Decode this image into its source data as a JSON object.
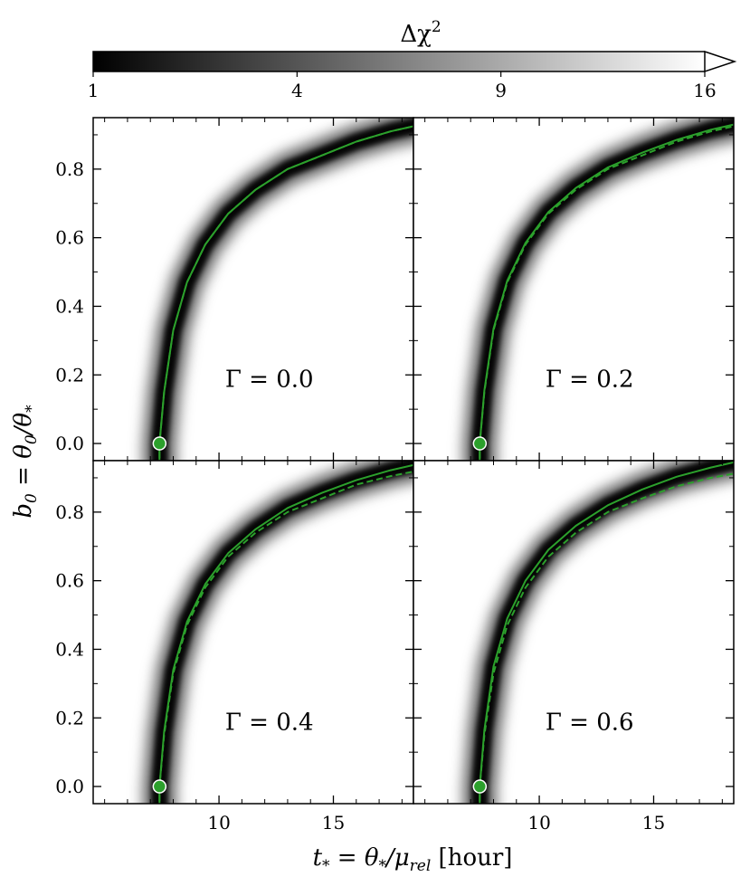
{
  "colorbar": {
    "label": "Δχ²",
    "label_base": "Δχ",
    "label_sup": "2",
    "ticks": [
      "1",
      "4",
      "9",
      "16"
    ],
    "tick_values": [
      1,
      4,
      9,
      16
    ],
    "scale": "sqrt",
    "range": [
      1,
      16
    ],
    "extend": "max",
    "colors": {
      "low": "#000000",
      "high": "#ffffff"
    }
  },
  "axes": {
    "xlabel": "t_* = θ_*/μ_rel [hour]",
    "xlabel_parts": {
      "var": "t",
      "sub1": "*",
      "eq": " = θ",
      "sub2": "*",
      "slash": "/μ",
      "sub3": "rel",
      "unit": " [hour]"
    },
    "ylabel": "b_0 = θ_0/θ_*",
    "ylabel_parts": {
      "var": "b",
      "sub1": "0",
      "eq": " = θ",
      "sub2": "0",
      "slash": "/θ",
      "sub3": "*"
    },
    "xlim": [
      4.5,
      18.5
    ],
    "ylim": [
      -0.05,
      0.95
    ],
    "xticks": [
      10,
      15
    ],
    "xtick_labels": [
      "10",
      "15"
    ],
    "yticks": [
      0.0,
      0.2,
      0.4,
      0.6,
      0.8
    ],
    "ytick_labels": [
      "0.0",
      "0.2",
      "0.4",
      "0.6",
      "0.8"
    ],
    "line_color": "#2ca02c",
    "marker_color": "#2ca02c"
  },
  "chart_data": [
    {
      "type": "heatmap",
      "panel": "top-left",
      "annotation": "Γ = 0.0",
      "gamma": 0.0,
      "best_fit": {
        "x": 7.4,
        "y": 0.0
      },
      "series": [
        {
          "style": "solid",
          "x": [
            7.4,
            7.6,
            8.0,
            8.6,
            9.4,
            10.4,
            11.6,
            13.0,
            14.5,
            16.0,
            17.5,
            18.5
          ],
          "y": [
            0.0,
            0.15,
            0.33,
            0.47,
            0.58,
            0.67,
            0.74,
            0.8,
            0.84,
            0.88,
            0.91,
            0.925
          ]
        },
        {
          "style": "dashed",
          "x": [
            7.4,
            7.6,
            8.0,
            8.6,
            9.4,
            10.4,
            11.6,
            13.0,
            14.5,
            16.0,
            17.5,
            18.5
          ],
          "y": [
            0.0,
            0.15,
            0.33,
            0.47,
            0.58,
            0.67,
            0.74,
            0.8,
            0.84,
            0.88,
            0.91,
            0.925
          ]
        }
      ]
    },
    {
      "type": "heatmap",
      "panel": "top-right",
      "annotation": "Γ = 0.2",
      "gamma": 0.2,
      "best_fit": {
        "x": 7.4,
        "y": 0.0
      },
      "series": [
        {
          "style": "solid",
          "x": [
            7.4,
            7.6,
            8.0,
            8.6,
            9.4,
            10.4,
            11.6,
            13.0,
            14.5,
            16.0,
            17.5,
            18.5
          ],
          "y": [
            0.0,
            0.155,
            0.335,
            0.475,
            0.585,
            0.675,
            0.745,
            0.805,
            0.848,
            0.885,
            0.915,
            0.93
          ]
        },
        {
          "style": "dashed",
          "x": [
            7.4,
            7.6,
            8.0,
            8.6,
            9.4,
            10.4,
            11.6,
            13.0,
            14.5,
            16.0,
            17.5,
            18.5
          ],
          "y": [
            0.0,
            0.15,
            0.33,
            0.47,
            0.58,
            0.67,
            0.74,
            0.8,
            0.84,
            0.88,
            0.91,
            0.925
          ]
        }
      ]
    },
    {
      "type": "heatmap",
      "panel": "bottom-left",
      "annotation": "Γ = 0.4",
      "gamma": 0.4,
      "best_fit": {
        "x": 7.4,
        "y": 0.0
      },
      "series": [
        {
          "style": "solid",
          "x": [
            7.4,
            7.6,
            8.0,
            8.6,
            9.4,
            10.4,
            11.6,
            13.0,
            14.5,
            16.0,
            17.5,
            18.5
          ],
          "y": [
            0.0,
            0.16,
            0.34,
            0.48,
            0.59,
            0.68,
            0.75,
            0.812,
            0.856,
            0.893,
            0.922,
            0.937
          ]
        },
        {
          "style": "dashed",
          "x": [
            7.4,
            7.6,
            8.0,
            8.6,
            9.4,
            10.4,
            11.6,
            13.0,
            14.5,
            16.0,
            17.5,
            18.5
          ],
          "y": [
            0.0,
            0.15,
            0.33,
            0.47,
            0.58,
            0.67,
            0.74,
            0.8,
            0.84,
            0.88,
            0.905,
            0.918
          ]
        }
      ]
    },
    {
      "type": "heatmap",
      "panel": "bottom-right",
      "annotation": "Γ = 0.6",
      "gamma": 0.6,
      "best_fit": {
        "x": 7.4,
        "y": 0.0
      },
      "series": [
        {
          "style": "solid",
          "x": [
            7.4,
            7.6,
            8.0,
            8.6,
            9.4,
            10.4,
            11.6,
            13.0,
            14.5,
            16.0,
            17.5,
            18.5
          ],
          "y": [
            0.0,
            0.165,
            0.35,
            0.49,
            0.6,
            0.69,
            0.76,
            0.82,
            0.866,
            0.903,
            0.93,
            0.945
          ]
        },
        {
          "style": "dashed",
          "x": [
            7.4,
            7.6,
            8.0,
            8.6,
            9.4,
            10.4,
            11.6,
            13.0,
            14.5,
            16.0,
            17.5,
            18.5
          ],
          "y": [
            0.0,
            0.15,
            0.33,
            0.47,
            0.58,
            0.67,
            0.74,
            0.8,
            0.84,
            0.875,
            0.9,
            0.912
          ]
        }
      ]
    }
  ]
}
